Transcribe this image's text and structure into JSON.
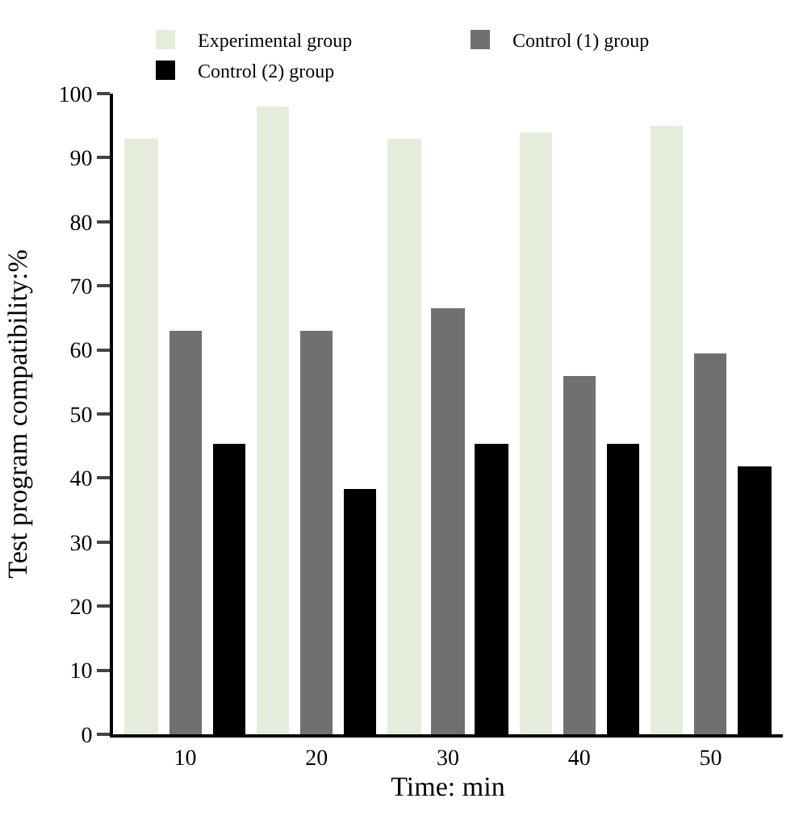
{
  "chart_data": {
    "type": "bar",
    "xlabel": "Time: min",
    "ylabel": "Test program compatibility:%",
    "categories": [
      "10",
      "20",
      "30",
      "40",
      "50"
    ],
    "series": [
      {
        "name": "Experimental group",
        "color": "#e6ecdc",
        "values": [
          93,
          98,
          93,
          94,
          95
        ]
      },
      {
        "name": "Control (1) group",
        "color": "#707070",
        "values": [
          63,
          63,
          66.5,
          56,
          59.5
        ]
      },
      {
        "name": "Control (2) group",
        "color": "#000000",
        "values": [
          45.3,
          38.3,
          45.3,
          45.3,
          41.7
        ]
      }
    ],
    "ylim": [
      0,
      100
    ],
    "yticks": [
      0,
      10,
      20,
      30,
      40,
      50,
      60,
      70,
      80,
      90,
      100
    ],
    "legend": "top"
  }
}
